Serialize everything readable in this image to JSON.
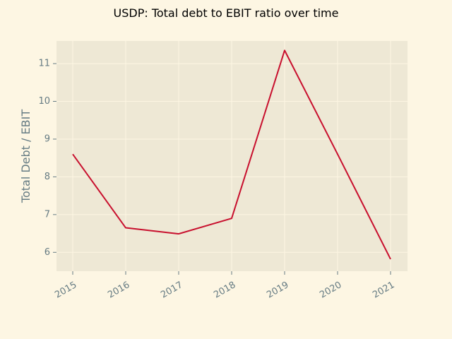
{
  "chart_data": {
    "type": "line",
    "title": "USDP: Total debt to EBIT ratio over time",
    "xlabel": "",
    "ylabel": "Total Debt / EBIT",
    "x": [
      "2015",
      "2016",
      "2017",
      "2018",
      "2019",
      "2020",
      "2021"
    ],
    "series": [
      {
        "values": [
          8.6,
          6.65,
          6.49,
          6.9,
          11.35,
          8.6,
          5.82
        ]
      }
    ],
    "yticks": [
      "6",
      "7",
      "8",
      "9",
      "10",
      "11"
    ],
    "ylim": [
      5.5,
      11.6
    ],
    "grid": true,
    "colors": {
      "background": "#fdf6e3",
      "plot_background": "#eee8d5",
      "grid": "#fdf6e3",
      "line": "#c8102e",
      "text": "#657b83"
    }
  }
}
